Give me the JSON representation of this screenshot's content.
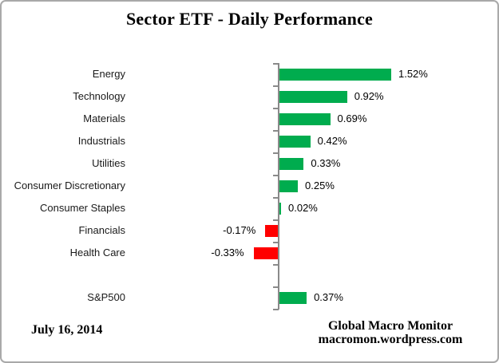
{
  "title": "Sector ETF - Daily Performance",
  "footer": {
    "date": "July 16, 2014",
    "source_line1": "Global Macro Monitor",
    "source_line2": "macromon.wordpress.com"
  },
  "colors": {
    "positive_bar": "#00AC4E",
    "negative_bar": "#FF0000",
    "axis": "#8A8A8A"
  },
  "chart_data": {
    "type": "bar",
    "orientation": "horizontal",
    "title": "Sector ETF - Daily Performance",
    "unit": "%",
    "baseline": 0,
    "value_axis_labels_visible": false,
    "categories": [
      "Energy",
      "Technology",
      "Materials",
      "Industrials",
      "Utilities",
      "Consumer Discretionary",
      "Consumer Staples",
      "Financials",
      "Health Care",
      "",
      "S&P500"
    ],
    "values": [
      1.52,
      0.92,
      0.69,
      0.42,
      0.33,
      0.25,
      0.02,
      -0.17,
      -0.33,
      null,
      0.37
    ],
    "labels": [
      "1.52%",
      "0.92%",
      "0.69%",
      "0.42%",
      "0.33%",
      "0.25%",
      "0.02%",
      "-0.17%",
      "-0.33%",
      null,
      "0.37%"
    ]
  }
}
